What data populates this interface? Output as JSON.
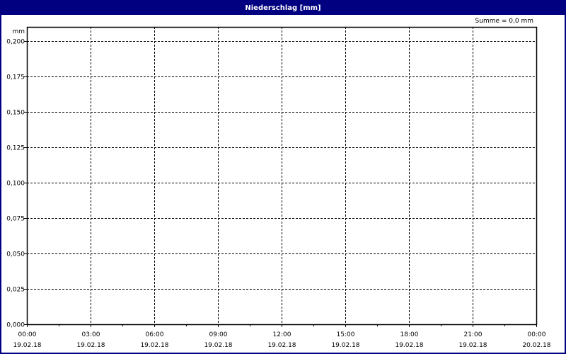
{
  "title": "Niederschlag [mm]",
  "summary": "Summe = 0,0 mm",
  "colors": {
    "titlebar": "#000080",
    "grid": "#000000"
  },
  "chart_data": {
    "type": "bar",
    "title": "Niederschlag [mm]",
    "ylabel": "mm",
    "xlabel": "",
    "ylim": [
      0,
      0.2
    ],
    "grid": true,
    "y_ticks": [
      "0,000",
      "0,025",
      "0,050",
      "0,075",
      "0,100",
      "0,125",
      "0,150",
      "0,175",
      "0,200"
    ],
    "x_ticks": [
      {
        "time": "00:00",
        "date": "19.02.18"
      },
      {
        "time": "03:00",
        "date": "19.02.18"
      },
      {
        "time": "06:00",
        "date": "19.02.18"
      },
      {
        "time": "09:00",
        "date": "19.02.18"
      },
      {
        "time": "12:00",
        "date": "19.02.18"
      },
      {
        "time": "15:00",
        "date": "19.02.18"
      },
      {
        "time": "18:00",
        "date": "19.02.18"
      },
      {
        "time": "21:00",
        "date": "19.02.18"
      },
      {
        "time": "00:00",
        "date": "20.02.18"
      }
    ],
    "series": [
      {
        "values": []
      }
    ],
    "annotation": "Summe = 0,0 mm"
  }
}
